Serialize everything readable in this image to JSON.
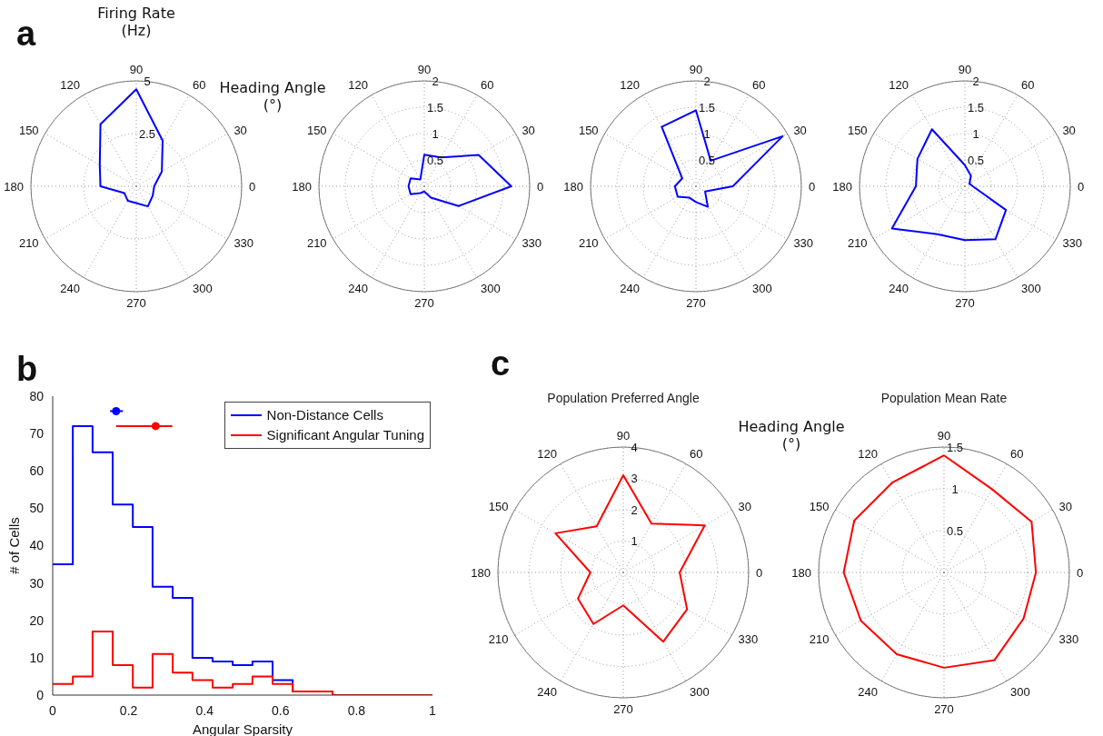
{
  "chart_data": [
    {
      "type": "radar",
      "annotations": [
        "a",
        "Firing Rate\n(Hz)",
        "Heading Angle\n(°)"
      ],
      "categories": [
        "90",
        "60",
        "30",
        "0",
        "330",
        "300",
        "270",
        "240",
        "210",
        "180",
        "150",
        "120"
      ],
      "series": [
        {
          "color": "#0000ff",
          "values": [
            4.6,
            2.5,
            1.4,
            0.85,
            0.9,
            1.1,
            0.8,
            0.8,
            0.65,
            1.7,
            2.0,
            3.4
          ]
        }
      ],
      "ylim": [
        0,
        5
      ],
      "yticks": [
        2.5,
        5
      ],
      "grid": true
    },
    {
      "type": "radar",
      "categories": [
        "90",
        "60",
        "30",
        "0",
        "330",
        "300",
        "270",
        "240",
        "210",
        "180",
        "150",
        "120"
      ],
      "series": [
        {
          "color": "#0000ff",
          "values": [
            0.6,
            0.63,
            1.19,
            1.65,
            0.75,
            0.25,
            0.1,
            0.15,
            0.3,
            0.3,
            0.3,
            0.15
          ]
        }
      ],
      "ylim": [
        0,
        2
      ],
      "yticks": [
        0.5,
        1,
        1.5,
        2
      ],
      "grid": true
    },
    {
      "type": "radar",
      "categories": [
        "90",
        "60",
        "30",
        "0",
        "330",
        "300",
        "270",
        "240",
        "210",
        "180",
        "150",
        "120"
      ],
      "series": [
        {
          "color": "#0000ff",
          "values": [
            1.44,
            0.56,
            1.9,
            0.7,
            0.2,
            0.45,
            0.3,
            0.25,
            0.4,
            0.4,
            0.3,
            1.3
          ]
        }
      ],
      "ylim": [
        0,
        2
      ],
      "yticks": [
        0.5,
        1,
        1.5,
        2
      ],
      "grid": true
    },
    {
      "type": "radar",
      "categories": [
        "90",
        "60",
        "30",
        "0",
        "330",
        "300",
        "270",
        "240",
        "210",
        "180",
        "150",
        "120"
      ],
      "series": [
        {
          "color": "#0000ff",
          "values": [
            0.4,
            0.23,
            0.1,
            0.15,
            0.9,
            1.16,
            1.02,
            1.05,
            1.6,
            0.93,
            1.04,
            1.25
          ]
        }
      ],
      "ylim": [
        0,
        2
      ],
      "yticks": [
        0.5,
        1,
        1.5,
        2
      ],
      "grid": true
    },
    {
      "type": "histogram",
      "annotations": [
        "b"
      ],
      "xlabel": "Angular Sparsity",
      "ylabel": "# of Cells",
      "bins": [
        0,
        0.053,
        0.105,
        0.158,
        0.211,
        0.263,
        0.316,
        0.368,
        0.421,
        0.474,
        0.526,
        0.579,
        0.632,
        0.684,
        0.737,
        0.789,
        0.842,
        0.895,
        0.947,
        1
      ],
      "series": [
        {
          "name": "Non-Distance Cells",
          "color": "#0000ff",
          "values": [
            35,
            72,
            65,
            51,
            45,
            29,
            26,
            10,
            9,
            8,
            9,
            4,
            1,
            1,
            0,
            0,
            0,
            0,
            0
          ]
        },
        {
          "name": "Significant Angular Tuning",
          "color": "#ff0000",
          "values": [
            3,
            5,
            17,
            8,
            2,
            11,
            6,
            4,
            2,
            3,
            5,
            3,
            1,
            1,
            0,
            0,
            0,
            0,
            0
          ]
        },
        {
          "type": "scatter",
          "color": "#0000ff",
          "x": [
            0.167
          ],
          "values": [
            76
          ],
          "xerrors": [
            [
              0.151,
              0.185
            ]
          ]
        },
        {
          "type": "scatter",
          "color": "#ff0000",
          "x": [
            0.271
          ],
          "values": [
            72
          ],
          "xerrors": [
            [
              0.167,
              0.315
            ]
          ]
        }
      ],
      "xlim": [
        0,
        1
      ],
      "xticks": [
        0,
        0.2,
        0.4,
        0.6,
        0.8,
        1
      ],
      "ylim": [
        0,
        80
      ],
      "yticks": [
        0,
        10,
        20,
        30,
        40,
        50,
        60,
        70,
        80
      ],
      "legend": "top right",
      "marker": "circle"
    },
    {
      "type": "radar",
      "title": "Population Preferred Angle",
      "annotations": [
        "c",
        "Heading Angle\n(°)"
      ],
      "categories": [
        "90",
        "60",
        "30",
        "0",
        "330",
        "300",
        "270",
        "240",
        "210",
        "180",
        "150",
        "120"
      ],
      "series": [
        {
          "color": "#ff0000",
          "values": [
            3.1,
            1.8,
            3.0,
            1.8,
            2.35,
            2.55,
            1.05,
            1.9,
            1.67,
            1.05,
            2.5,
            1.7
          ]
        }
      ],
      "ylim": [
        0,
        4
      ],
      "yticks": [
        1,
        2,
        3,
        4
      ],
      "grid": true
    },
    {
      "type": "radar",
      "title": "Population Mean Rate",
      "categories": [
        "90",
        "60",
        "30",
        "0",
        "330",
        "300",
        "270",
        "240",
        "210",
        "180",
        "150",
        "120"
      ],
      "series": [
        {
          "color": "#ff0000",
          "values": [
            1.4,
            1.15,
            1.21,
            1.1,
            1.1,
            1.21,
            1.14,
            1.13,
            1.15,
            1.2,
            1.24,
            1.24
          ]
        }
      ],
      "ylim": [
        0,
        1.5
      ],
      "yticks": [
        0.5,
        1,
        1.5
      ],
      "grid": true
    }
  ]
}
